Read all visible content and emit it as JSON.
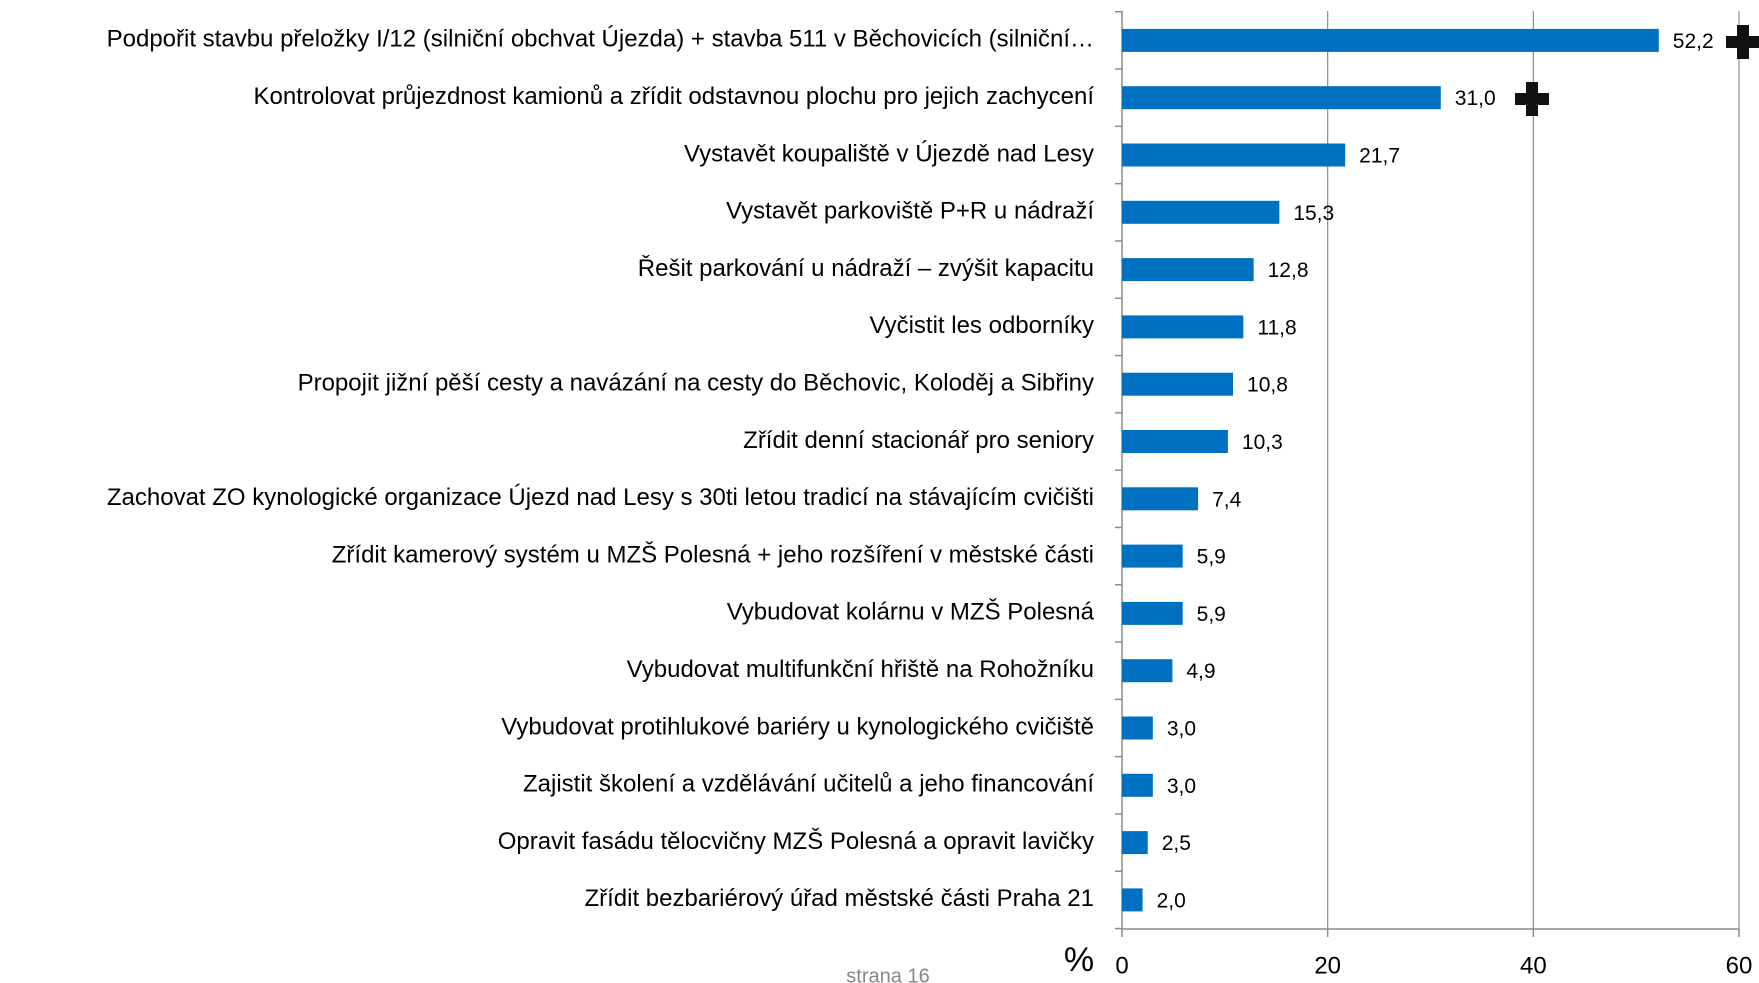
{
  "chart_data": {
    "type": "barh",
    "categories": [
      "Podpořit stavbu přeložky I/12 (silniční obchvat Újezda) + stavba 511  v Běchovicích (silniční…",
      "Kontrolovat průjezdnost kamionů a zřídit odstavnou plochu pro jejich zachycení",
      "Vystavět koupaliště v Újezdě nad Lesy",
      "Vystavět parkoviště P+R u nádraží",
      "Řešit parkování u nádraží – zvýšit kapacitu",
      "Vyčistit les odborníky",
      "Propojit jižní pěší cesty a navázání na cesty do Běchovic, Koloděj a Sibřiny",
      "Zřídit denní stacionář pro seniory",
      "Zachovat ZO kynologické organizace Újezd nad Lesy s 30ti letou tradicí na stávajícím cvičišti",
      "Zřídit kamerový systém u MZŠ Polesná + jeho rozšíření v městské části",
      "Vybudovat kolárnu v MZŠ Polesná",
      "Vybudovat multifunkční hřiště na Rohožníku",
      "Vybudovat protihlukové bariéry u kynologického cvičiště",
      "Zajistit školení a vzdělávání učitelů a jeho  financování",
      "Opravit fasádu tělocvičny MZŠ Polesná a opravit lavičky",
      "Zřídit bezbariérový úřad městské části Praha 21"
    ],
    "values": [
      52.2,
      31.0,
      21.7,
      15.3,
      12.8,
      11.8,
      10.8,
      10.3,
      7.4,
      5.9,
      5.9,
      4.9,
      3.0,
      3.0,
      2.5,
      2.0
    ],
    "value_labels": [
      "52,2",
      "31,0",
      "21,7",
      "15,3",
      "12,8",
      "11,8",
      "10,8",
      "10,3",
      "7,4",
      "5,9",
      "5,9",
      "4,9",
      "3,0",
      "3,0",
      "2,5",
      "2,0"
    ],
    "color": "#0070c0",
    "xlim": [
      0,
      60
    ],
    "xticks": [
      0,
      20,
      40,
      60
    ],
    "grid": true,
    "xlabel": "%",
    "footer": "strana 16"
  }
}
